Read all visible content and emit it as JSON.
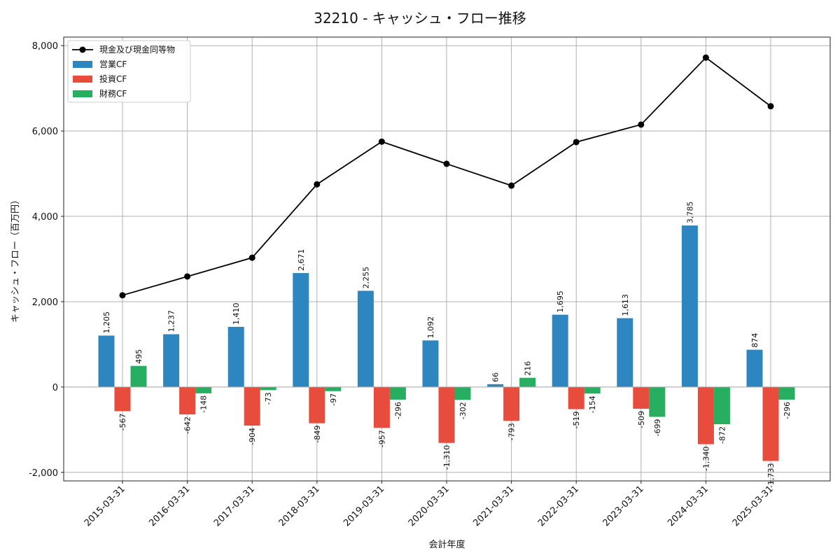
{
  "chart_data": {
    "type": "bar",
    "title": "32210 - キャッシュ・フロー推移",
    "xlabel": "会計年度",
    "ylabel": "キャッシュ・フロー（百万円）",
    "ylim": [
      -2200,
      8200
    ],
    "yticks": [
      -2000,
      0,
      2000,
      4000,
      6000,
      8000
    ],
    "ytick_labels": [
      "-2,000",
      "0",
      "2,000",
      "4,000",
      "6,000",
      "8,000"
    ],
    "grid": true,
    "legend_position": "top-left",
    "categories": [
      "2015-03-31",
      "2016-03-31",
      "2017-03-31",
      "2018-03-31",
      "2019-03-31",
      "2020-03-31",
      "2021-03-31",
      "2022-03-31",
      "2023-03-31",
      "2024-03-31",
      "2025-03-31"
    ],
    "series": [
      {
        "name": "営業CF",
        "kind": "bar",
        "color": "#2e86c1",
        "values": [
          1205,
          1237,
          1410,
          2671,
          2255,
          1092,
          66,
          1695,
          1613,
          3785,
          874
        ],
        "labels": [
          "1,205",
          "1,237",
          "1,410",
          "2,671",
          "2,255",
          "1,092",
          "66",
          "1,695",
          "1,613",
          "3,785",
          "874"
        ]
      },
      {
        "name": "投資CF",
        "kind": "bar",
        "color": "#e74c3c",
        "values": [
          -567,
          -642,
          -904,
          -849,
          -957,
          -1310,
          -793,
          -519,
          -509,
          -1340,
          -1733
        ],
        "labels": [
          "-567",
          "-642",
          "-904",
          "-849",
          "-957",
          "-1,310",
          "-793",
          "-519",
          "-509",
          "-1,340",
          "-1,733"
        ]
      },
      {
        "name": "財務CF",
        "kind": "bar",
        "color": "#27ae60",
        "values": [
          495,
          -148,
          -73,
          -97,
          -296,
          -302,
          216,
          -154,
          -699,
          -872,
          -296
        ],
        "labels": [
          "495",
          "-148",
          "-73",
          "-97",
          "-296",
          "-302",
          "216",
          "-154",
          "-699",
          "-872",
          "-296"
        ]
      },
      {
        "name": "現金及び現金同等物",
        "kind": "line",
        "color": "#000000",
        "values": [
          2150,
          2590,
          3030,
          4750,
          5750,
          5230,
          4720,
          5740,
          6150,
          7720,
          6580
        ]
      }
    ]
  }
}
